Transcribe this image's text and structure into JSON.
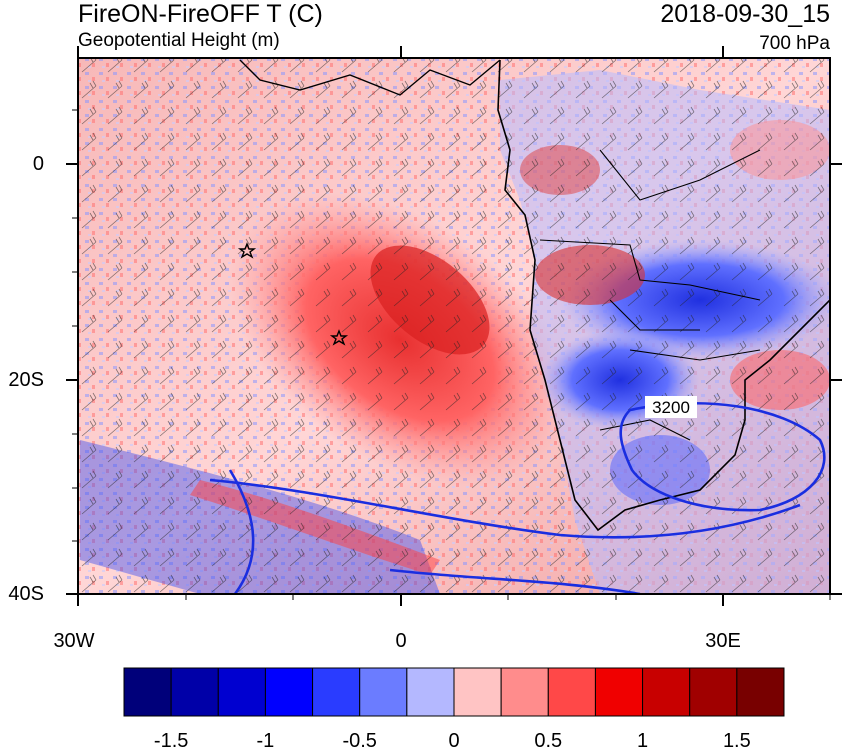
{
  "header": {
    "title_left": "FireON-FireOFF T (C)",
    "subtitle_left": "Geopotential Height (m)",
    "title_right": "2018-09-30_15",
    "subtitle_right": "700 hPa"
  },
  "map": {
    "y_tick_labels": [
      "0",
      "20S",
      "40S"
    ],
    "x_tick_labels": [
      "30W",
      "0",
      "30E"
    ],
    "contour_label": "3200",
    "markers": [
      "star-marker-1",
      "star-marker-2"
    ]
  },
  "colorbar": {
    "colors": [
      "#00007a",
      "#0000a8",
      "#0000d0",
      "#0000ff",
      "#2a3cff",
      "#6b7cff",
      "#b4b8ff",
      "#ffc4c4",
      "#ff8c8c",
      "#ff4848",
      "#f00000",
      "#c80000",
      "#a00000",
      "#780000"
    ],
    "tick_labels": [
      "-1.5",
      "-1",
      "-0.5",
      "0",
      "0.5",
      "1",
      "1.5"
    ]
  }
}
